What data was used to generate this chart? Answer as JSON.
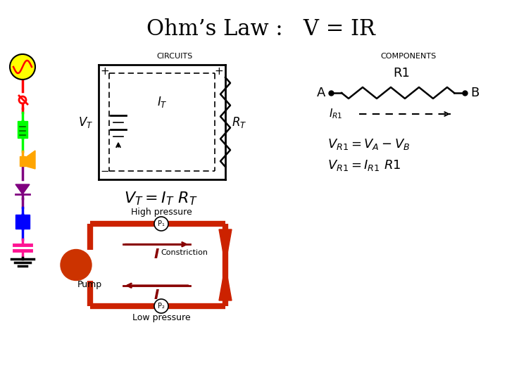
{
  "title": "Ohm’s Law :   V = IR",
  "title_fontsize": 22,
  "bg_color": "#ffffff",
  "circuits_label": "CIRCUITS",
  "components_label": "COMPONENTS",
  "pipe_color": "#cc2200",
  "pipe_lw": 6,
  "arrow_color": "#880000",
  "pump_color": "#cc2200",
  "constriction_label": "Constriction",
  "pump_label": "Pump",
  "high_pressure_label": "High pressure",
  "low_pressure_label": "Low pressure",
  "p1_label": "P₁",
  "p2_label": "P₂",
  "I_label": "I"
}
